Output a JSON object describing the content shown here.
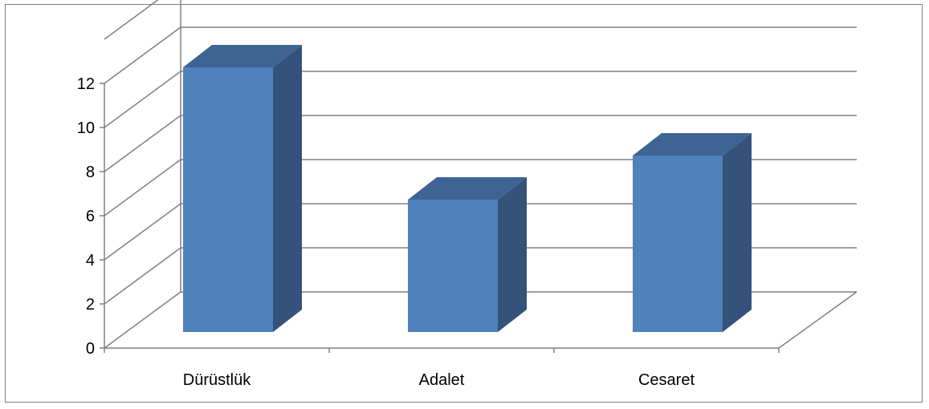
{
  "chart_data": {
    "type": "bar",
    "style": "3d-column",
    "categories": [
      "Dürüstlük",
      "Adalet",
      "Cesaret"
    ],
    "values": [
      12,
      6,
      8
    ],
    "ylim": [
      0,
      12
    ],
    "yticks": [
      0,
      2,
      4,
      6,
      8,
      10,
      12
    ],
    "grid": true,
    "legend": "none",
    "colors": {
      "bar_front": "#4f81bd",
      "bar_side": "#34527a",
      "bar_top": "#3e6494",
      "gridline": "#808080",
      "frame": "#7f7f7f"
    }
  }
}
